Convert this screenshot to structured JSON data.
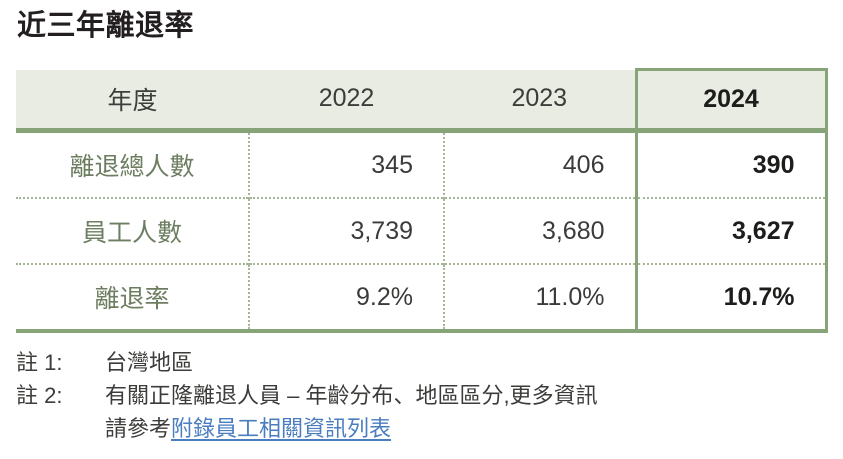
{
  "page": {
    "title": "近三年離退率"
  },
  "table": {
    "header": {
      "label": "年度",
      "years": [
        "2022",
        "2023",
        "2024"
      ]
    },
    "highlight_year": "2024",
    "rows": [
      {
        "label": "離退總人數",
        "values": [
          "345",
          "406",
          "390"
        ]
      },
      {
        "label": "員工人數",
        "values": [
          "3,739",
          "3,680",
          "3,627"
        ]
      },
      {
        "label": "離退率",
        "values": [
          "9.2%",
          "11.0%",
          "10.7%"
        ]
      }
    ]
  },
  "notes": [
    {
      "label": "註 1:",
      "text": "台灣地區"
    },
    {
      "label": "註 2:",
      "text": "有關正隆離退人員 – 年齡分布、地區區分,更多資訊",
      "line2_prefix": "請參考",
      "link_text": "附錄員工相關資訊列表"
    }
  ],
  "colors": {
    "accent_green_border": "#87a378",
    "header_bg": "#e9ece2",
    "dotted_grid": "#a4b598",
    "row_label_green": "#6d7d60",
    "bold_text": "#1d1d1b",
    "body_text": "#3b3b39",
    "link_blue": "#4a7ec0"
  }
}
